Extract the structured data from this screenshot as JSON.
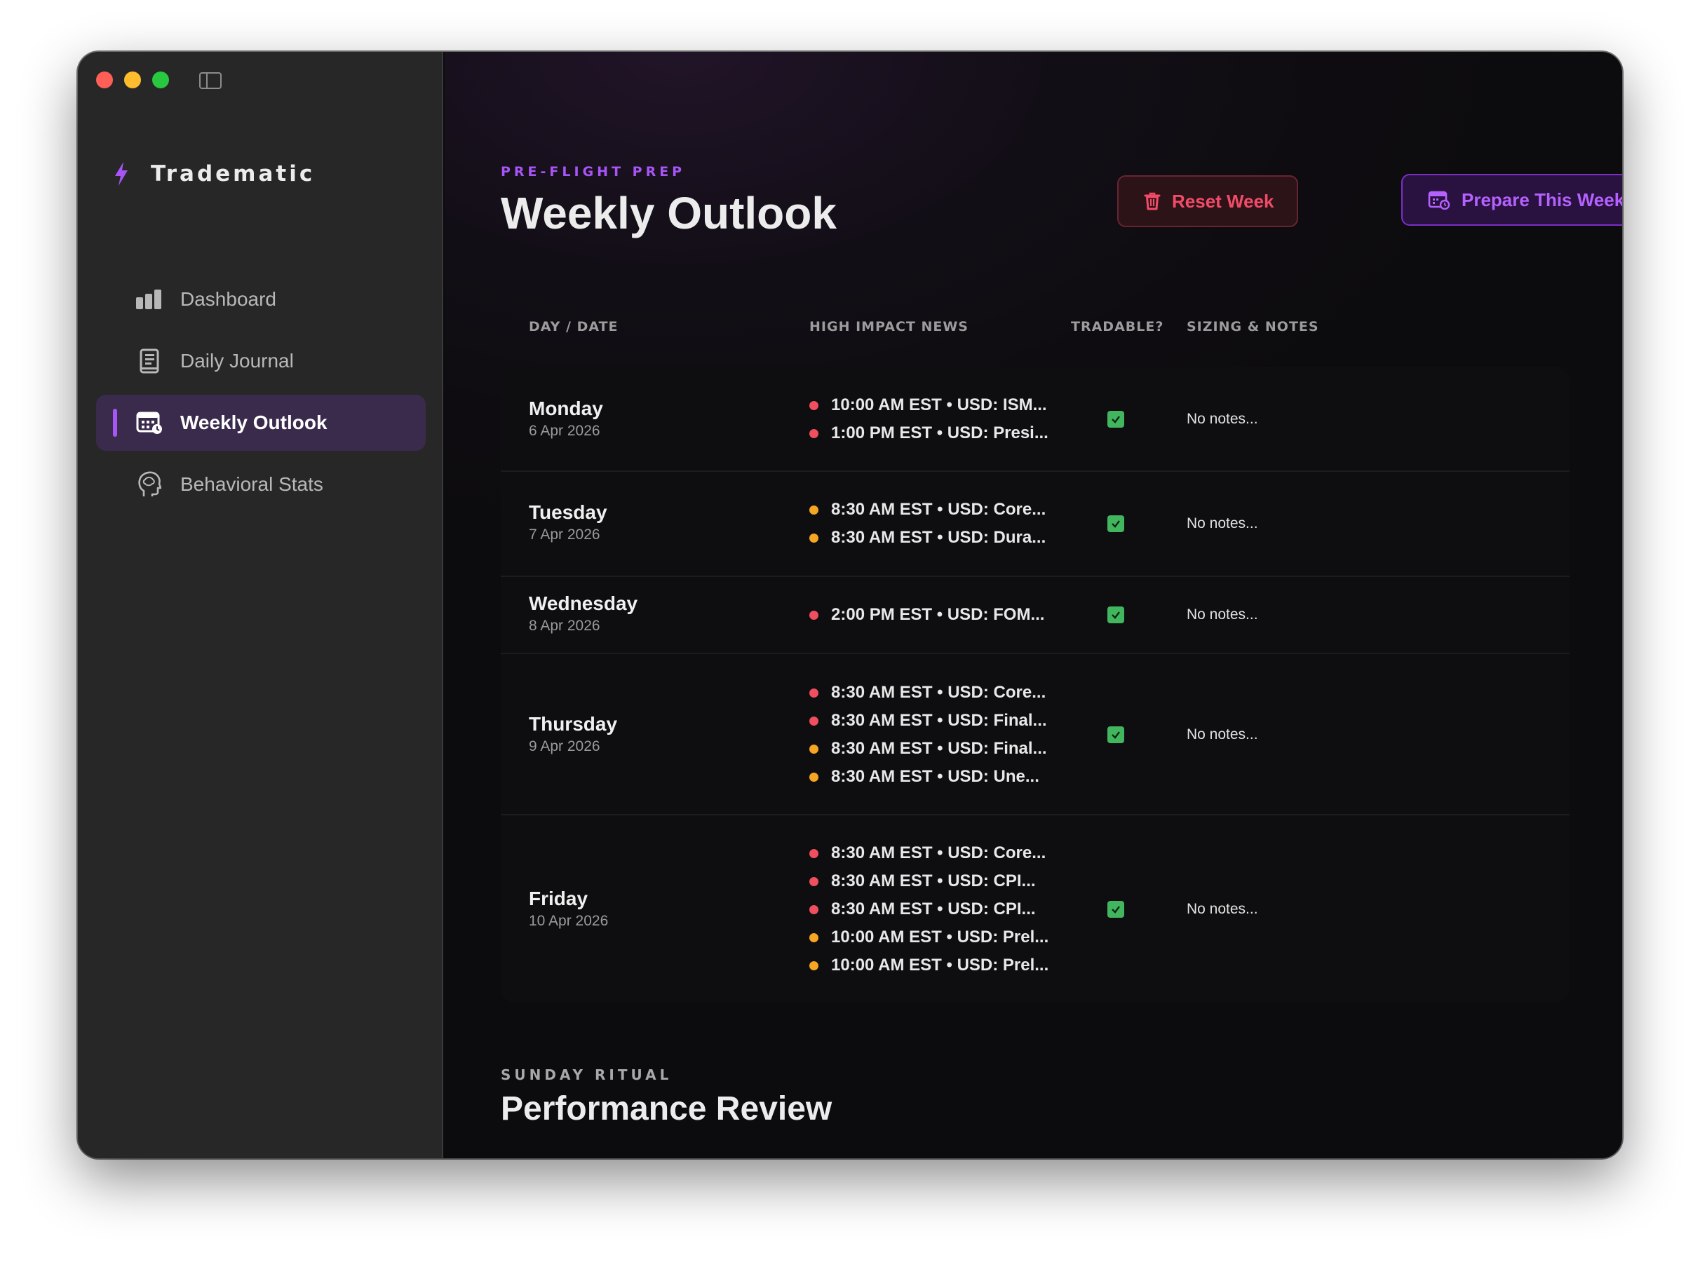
{
  "sidebar": {
    "brand": "Tradematic",
    "items": [
      {
        "label": "Dashboard",
        "icon": "bar-chart-icon"
      },
      {
        "label": "Daily Journal",
        "icon": "journal-icon"
      },
      {
        "label": "Weekly Outlook",
        "icon": "calendar-icon",
        "active": true
      },
      {
        "label": "Behavioral Stats",
        "icon": "brain-head-icon"
      }
    ]
  },
  "header": {
    "eyebrow": "PRE-FLIGHT PREP",
    "title": "Weekly Outlook",
    "reset_label": "Reset Week",
    "prepare_label": "Prepare This Week"
  },
  "table": {
    "columns": [
      "DAY / DATE",
      "HIGH IMPACT NEWS",
      "TRADABLE?",
      "SIZING & NOTES"
    ],
    "rows": [
      {
        "day": "Monday",
        "date": "6 Apr 2026",
        "tradable": true,
        "notes": "No notes...",
        "news": [
          {
            "text": "10:00 AM EST • USD: ISM...",
            "impact": "red"
          },
          {
            "text": "1:00 PM EST • USD: Presi...",
            "impact": "red"
          }
        ]
      },
      {
        "day": "Tuesday",
        "date": "7 Apr 2026",
        "tradable": true,
        "notes": "No notes...",
        "news": [
          {
            "text": "8:30 AM EST • USD: Core...",
            "impact": "orange"
          },
          {
            "text": "8:30 AM EST • USD: Dura...",
            "impact": "orange"
          }
        ]
      },
      {
        "day": "Wednesday",
        "date": "8 Apr 2026",
        "tradable": true,
        "notes": "No notes...",
        "news": [
          {
            "text": "2:00 PM EST • USD: FOM...",
            "impact": "red"
          }
        ]
      },
      {
        "day": "Thursday",
        "date": "9 Apr 2026",
        "tradable": true,
        "notes": "No notes...",
        "news": [
          {
            "text": "8:30 AM EST • USD: Core...",
            "impact": "red"
          },
          {
            "text": "8:30 AM EST • USD: Final...",
            "impact": "red"
          },
          {
            "text": "8:30 AM EST • USD: Final...",
            "impact": "orange"
          },
          {
            "text": "8:30 AM EST • USD: Une...",
            "impact": "orange"
          }
        ]
      },
      {
        "day": "Friday",
        "date": "10 Apr 2026",
        "tradable": true,
        "notes": "No notes...",
        "news": [
          {
            "text": "8:30 AM EST • USD: Core...",
            "impact": "red"
          },
          {
            "text": "8:30 AM EST • USD: CPI...",
            "impact": "red"
          },
          {
            "text": "8:30 AM EST • USD: CPI...",
            "impact": "red"
          },
          {
            "text": "10:00 AM EST • USD: Prel...",
            "impact": "orange"
          },
          {
            "text": "10:00 AM EST • USD: Prel...",
            "impact": "orange"
          }
        ]
      }
    ]
  },
  "review": {
    "eyebrow": "SUNDAY RITUAL",
    "title": "Performance Review"
  },
  "colors": {
    "accent": "#a855f7",
    "danger": "#f24b67",
    "success": "#41b65f",
    "high_impact": "#ef4f5f",
    "medium_impact": "#f5a623"
  }
}
